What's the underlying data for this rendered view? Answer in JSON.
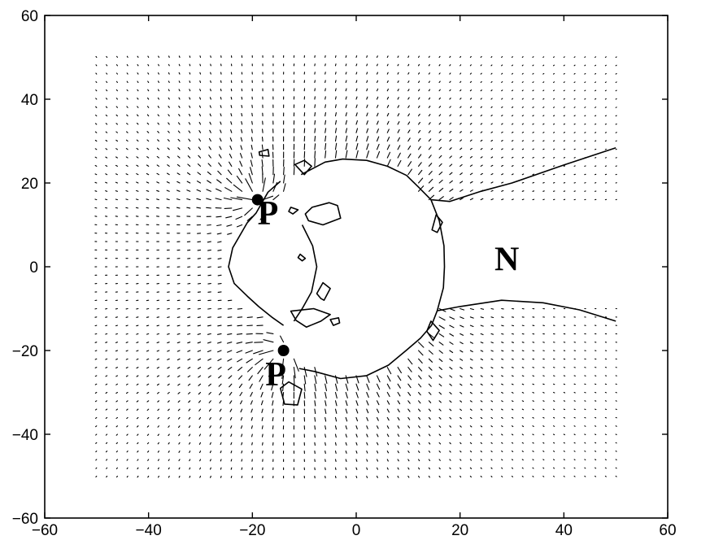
{
  "chart_data": {
    "type": "quiver",
    "title": "",
    "xlabel": "",
    "ylabel": "",
    "xlim": [
      -60,
      60
    ],
    "ylim": [
      -60,
      60
    ],
    "xticks": [
      -60,
      -40,
      -20,
      0,
      20,
      40,
      60
    ],
    "yticks": [
      -60,
      -40,
      -20,
      0,
      20,
      40,
      60
    ],
    "xtick_labels": [
      "−60",
      "−40",
      "−20",
      "0",
      "20",
      "40",
      "60"
    ],
    "ytick_labels": [
      "−60",
      "−40",
      "−20",
      "0",
      "20",
      "40",
      "60"
    ],
    "grid": false,
    "vector_field": {
      "x_range": [
        -50,
        50
      ],
      "y_range": [
        -50,
        50
      ],
      "spacing": 2,
      "sources": [
        {
          "x": -19,
          "y": 16,
          "strength": 1.0
        },
        {
          "x": -14,
          "y": -20,
          "strength": 1.0
        }
      ],
      "tissue_center": {
        "x": -1,
        "y": 0
      }
    },
    "annotations": [
      {
        "text": "P",
        "x": -17,
        "y": 12
      },
      {
        "text": "P",
        "x": -15.5,
        "y": -26.5
      },
      {
        "text": "N",
        "x": 29,
        "y": 1
      }
    ],
    "contours": [
      {
        "name": "main-boundary",
        "points": [
          [
            -10.6,
            22
          ],
          [
            -6,
            25
          ],
          [
            -2.6,
            25.7
          ],
          [
            2,
            25.4
          ],
          [
            6,
            24
          ],
          [
            9.7,
            21.8
          ],
          [
            12,
            19
          ],
          [
            14.4,
            16
          ],
          [
            18,
            15.6
          ],
          [
            24,
            18
          ],
          [
            30,
            20
          ],
          [
            40,
            24.3
          ],
          [
            50,
            28.4
          ]
        ]
      },
      {
        "name": "main-boundary-lower",
        "points": [
          [
            50,
            -13
          ],
          [
            43,
            -10.3
          ],
          [
            36,
            -8.6
          ],
          [
            28,
            -8
          ],
          [
            20,
            -9.5
          ],
          [
            15.6,
            -10.5
          ],
          [
            14.5,
            -14
          ],
          [
            12.4,
            -17
          ],
          [
            9.6,
            -20
          ],
          [
            6.2,
            -23.5
          ],
          [
            2,
            -26
          ],
          [
            -3,
            -26.7
          ],
          [
            -8,
            -25
          ],
          [
            -11,
            -24.3
          ]
        ]
      },
      {
        "name": "left-bulge",
        "points": [
          [
            -14.6,
            20.4
          ],
          [
            -17,
            17.8
          ],
          [
            -19.3,
            12.8
          ],
          [
            -21,
            10.5
          ],
          [
            -23.8,
            4.5
          ],
          [
            -24.6,
            0
          ],
          [
            -23.5,
            -4
          ],
          [
            -21,
            -7
          ],
          [
            -18.8,
            -9.5
          ],
          [
            -16.3,
            -12
          ],
          [
            -14,
            -14
          ]
        ]
      },
      {
        "name": "inner-wall",
        "points": [
          [
            -10.4,
            10
          ],
          [
            -8.4,
            5
          ],
          [
            -7.6,
            0
          ],
          [
            -8.6,
            -6
          ],
          [
            -10.4,
            -10
          ],
          [
            -12,
            -13
          ]
        ]
      },
      {
        "name": "right-face",
        "points": [
          [
            14.4,
            16
          ],
          [
            16,
            11
          ],
          [
            16.9,
            5
          ],
          [
            17,
            0
          ],
          [
            16.8,
            -5
          ],
          [
            15.6,
            -10.5
          ]
        ]
      },
      {
        "name": "island-1",
        "points": [
          [
            -10.8,
            3
          ],
          [
            -9.8,
            2
          ],
          [
            -10.4,
            1.4
          ],
          [
            -11.2,
            2.2
          ]
        ]
      },
      {
        "name": "island-2",
        "points": [
          [
            -8.5,
            14.2
          ],
          [
            -5.2,
            15.3
          ],
          [
            -3.6,
            14.6
          ],
          [
            -3,
            11.6
          ],
          [
            -6.4,
            10
          ],
          [
            -9.2,
            11
          ],
          [
            -9.8,
            12.6
          ]
        ]
      },
      {
        "name": "island-3",
        "points": [
          [
            -6.4,
            -3.8
          ],
          [
            -5,
            -5.2
          ],
          [
            -6.2,
            -8
          ],
          [
            -6.8,
            -7.6
          ],
          [
            -7.6,
            -6.4
          ]
        ]
      },
      {
        "name": "island-4",
        "points": [
          [
            -12.6,
            -10.6
          ],
          [
            -8.2,
            -10
          ],
          [
            -5,
            -11.4
          ],
          [
            -6.8,
            -13
          ],
          [
            -9.6,
            -14.4
          ],
          [
            -11.6,
            -12.8
          ]
        ]
      },
      {
        "name": "island-5",
        "points": [
          [
            -5,
            -12.6
          ],
          [
            -3.4,
            -12.2
          ],
          [
            -3.2,
            -13.4
          ],
          [
            -4.4,
            -14
          ]
        ]
      },
      {
        "name": "small-a",
        "points": [
          [
            -18.7,
            27.4
          ],
          [
            -17,
            28
          ],
          [
            -16.8,
            26.4
          ],
          [
            -18.6,
            26.6
          ]
        ]
      },
      {
        "name": "small-b",
        "points": [
          [
            -12.6,
            14.2
          ],
          [
            -11.2,
            13.6
          ],
          [
            -12.2,
            12.6
          ],
          [
            -13,
            13.2
          ]
        ]
      },
      {
        "name": "small-c",
        "points": [
          [
            -10,
            22
          ],
          [
            -11.8,
            24.4
          ],
          [
            -10,
            25.4
          ],
          [
            -8.6,
            24
          ]
        ]
      },
      {
        "name": "small-d",
        "points": [
          [
            15.4,
            12.4
          ],
          [
            16.6,
            10.6
          ],
          [
            15.6,
            8.2
          ],
          [
            14.6,
            8.8
          ]
        ]
      },
      {
        "name": "small-e",
        "points": [
          [
            14.4,
            -13
          ],
          [
            16,
            -15.2
          ],
          [
            14.8,
            -17.6
          ],
          [
            13.6,
            -15.4
          ]
        ]
      },
      {
        "name": "small-f",
        "points": [
          [
            -14.6,
            -29
          ],
          [
            -13,
            -27.5
          ],
          [
            -10.5,
            -29.2
          ],
          [
            -11.3,
            -33
          ],
          [
            -13.8,
            -32.8
          ]
        ]
      }
    ]
  }
}
